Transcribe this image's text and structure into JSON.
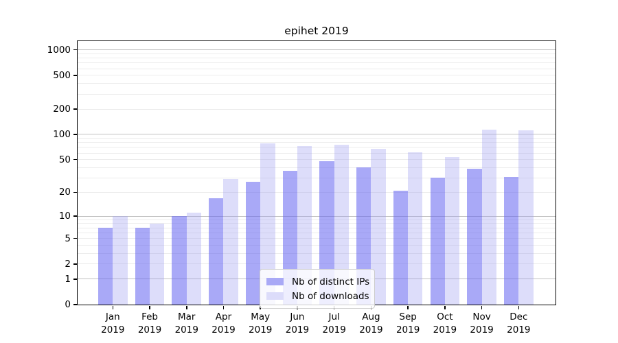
{
  "title": "epihet 2019",
  "chart_data": {
    "type": "bar",
    "title": "epihet 2019",
    "categories": [
      "Jan",
      "Feb",
      "Mar",
      "Apr",
      "May",
      "Jun",
      "Jul",
      "Aug",
      "Sep",
      "Oct",
      "Nov",
      "Dec"
    ],
    "year_label": "2019",
    "series": [
      {
        "name": "Nb of distinct IPs",
        "color": "#a9a9f6",
        "bar_rgba": "rgba(99,99,240,0.55)",
        "values": [
          7,
          7,
          10,
          17,
          27,
          37,
          48,
          40,
          21,
          30,
          39,
          31
        ]
      },
      {
        "name": "Nb of downloads",
        "color": "#dcdcfa",
        "bar_rgba": "rgba(158,158,241,0.35)",
        "values": [
          10,
          8,
          11,
          29,
          78,
          72,
          76,
          67,
          61,
          54,
          115,
          112
        ]
      }
    ],
    "yticks": [
      0,
      1,
      2,
      5,
      10,
      20,
      50,
      100,
      200,
      500,
      1000
    ],
    "yscale": "log1p",
    "ylim": [
      0,
      1268
    ],
    "xlabel": "",
    "ylabel": "",
    "grid": "both",
    "legend_position": "lower center"
  },
  "colors": {
    "background": "#ffffff",
    "axis": "#000000",
    "grid_major": "#c0c0c0",
    "grid_minor": "#ececec",
    "legend_border": "#cccccc"
  }
}
